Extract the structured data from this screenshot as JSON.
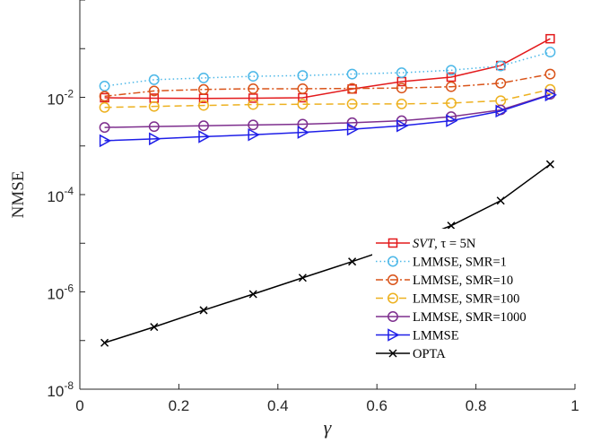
{
  "chart_data": {
    "type": "line",
    "xlabel": "γ",
    "ylabel": "NMSE",
    "xlim": [
      0,
      1
    ],
    "ylim": [
      1e-08,
      1
    ],
    "yscale": "log",
    "xticks": [
      0,
      0.2,
      0.4,
      0.6,
      0.8,
      1
    ],
    "xtick_labels": [
      "0",
      "0.2",
      "0.4",
      "0.6",
      "0.8",
      "1"
    ],
    "yticks": [
      {
        "base": "10",
        "exp": "-8",
        "value": 1e-08
      },
      {
        "base": "10",
        "exp": "-6",
        "value": 1e-06
      },
      {
        "base": "10",
        "exp": "-4",
        "value": 0.0001
      },
      {
        "base": "10",
        "exp": "-2",
        "value": 0.01
      }
    ],
    "grid": false,
    "legend_position": "bottom-right",
    "x": [
      0.05,
      0.15,
      0.25,
      0.35,
      0.45,
      0.55,
      0.65,
      0.75,
      0.85,
      0.95
    ],
    "series": [
      {
        "name": "SVT, τ = 5N",
        "color": "#e31a1c",
        "marker": "square",
        "dash": "solid",
        "values": [
          0.0098,
          0.0096,
          0.0095,
          0.0096,
          0.0098,
          0.0148,
          0.021,
          0.026,
          0.045,
          0.16
        ]
      },
      {
        "name": "LMMSE, SMR=1",
        "color": "#4db8e8",
        "marker": "circle",
        "dash": "dotted",
        "values": [
          0.017,
          0.023,
          0.025,
          0.027,
          0.028,
          0.03,
          0.032,
          0.036,
          0.044,
          0.085
        ]
      },
      {
        "name": "LMMSE, SMR=10",
        "color": "#d95319",
        "marker": "circle",
        "dash": "dashdot",
        "values": [
          0.0105,
          0.0135,
          0.0145,
          0.015,
          0.015,
          0.0152,
          0.0155,
          0.0165,
          0.0195,
          0.03
        ]
      },
      {
        "name": "LMMSE, SMR=100",
        "color": "#edb120",
        "marker": "circle",
        "dash": "dashed",
        "values": [
          0.0062,
          0.0065,
          0.0068,
          0.0071,
          0.0072,
          0.0073,
          0.0073,
          0.0076,
          0.0085,
          0.0145
        ]
      },
      {
        "name": "LMMSE, SMR=1000",
        "color": "#7e2f8e",
        "marker": "circle",
        "dash": "solid",
        "values": [
          0.0024,
          0.0025,
          0.0026,
          0.0027,
          0.0028,
          0.003,
          0.0033,
          0.004,
          0.0055,
          0.0115
        ]
      },
      {
        "name": "LMMSE",
        "color": "#1f1fe8",
        "marker": "triangle-right",
        "dash": "solid",
        "values": [
          0.00128,
          0.0014,
          0.00155,
          0.0017,
          0.0019,
          0.0022,
          0.0026,
          0.0033,
          0.0052,
          0.0112
        ]
      },
      {
        "name": "OPTA",
        "color": "#000000",
        "marker": "x",
        "dash": "solid",
        "values": [
          9e-08,
          1.9e-07,
          4.2e-07,
          9e-07,
          1.95e-06,
          4.2e-06,
          9.3e-06,
          2.3e-05,
          7.5e-05,
          0.00042
        ]
      }
    ],
    "legend_labels": [
      {
        "main": "SVT",
        "rest": ", τ = 5N"
      },
      {
        "main": "LMMSE, SMR=1",
        "rest": ""
      },
      {
        "main": "LMMSE, SMR=10",
        "rest": ""
      },
      {
        "main": "LMMSE, SMR=100",
        "rest": ""
      },
      {
        "main": "LMMSE, SMR=1000",
        "rest": ""
      },
      {
        "main": "LMMSE",
        "rest": ""
      },
      {
        "main": "OPTA",
        "rest": ""
      }
    ]
  }
}
